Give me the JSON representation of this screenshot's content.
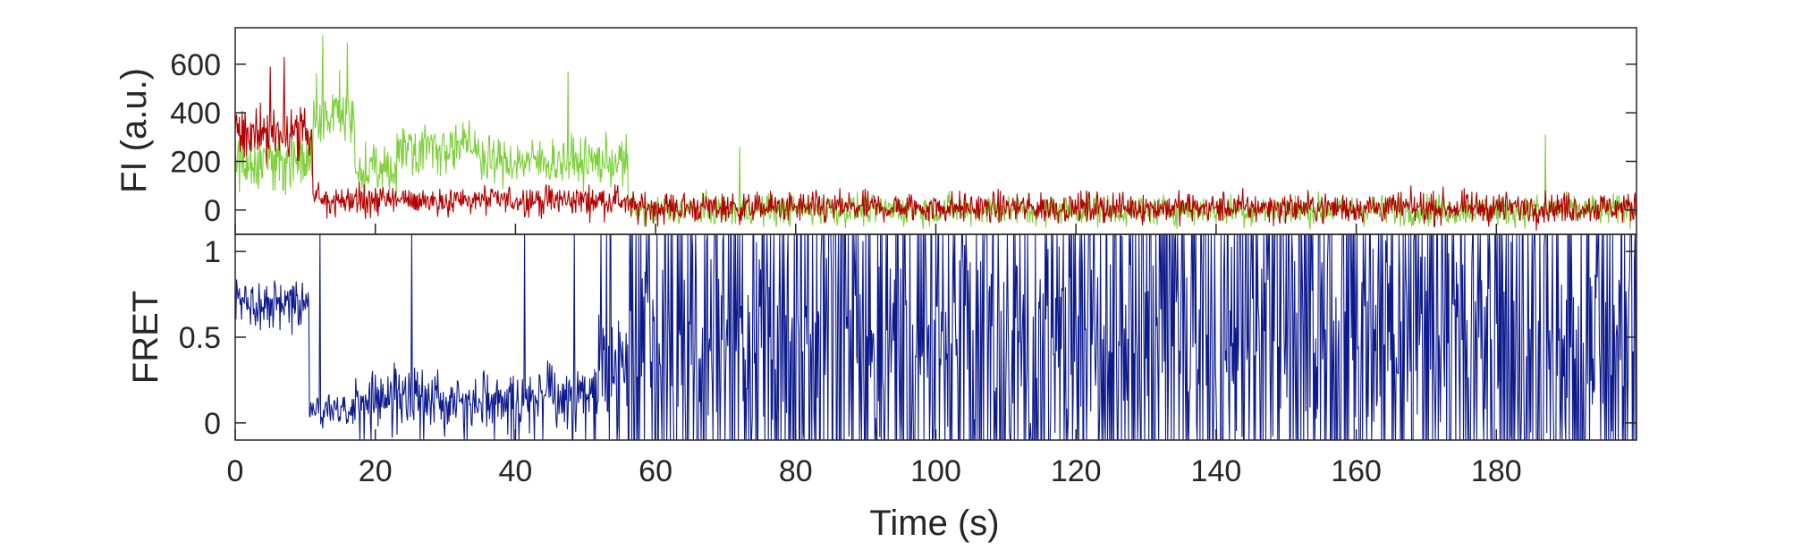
{
  "chart_data": [
    {
      "type": "line",
      "panel": "intensity",
      "ylabel": "FI (a.u.)",
      "ylim": [
        -100,
        750
      ],
      "xlim": [
        0,
        200
      ],
      "yticks": [
        "0",
        "200",
        "400",
        "600"
      ],
      "ytick_values": [
        0,
        200,
        400,
        600
      ],
      "grid": false,
      "colors": {
        "donor": "#7dd03a",
        "acceptor": "#b30000"
      },
      "series": [
        {
          "color": "#7dd03a",
          "trace_segments": [
            {
              "x_range": [
                0,
                11
              ],
              "mean": 200,
              "noise": 90
            },
            {
              "x_range": [
                11,
                17
              ],
              "mean": 380,
              "noise": 110
            },
            {
              "x_range": [
                17,
                23
              ],
              "mean": 160,
              "noise": 70
            },
            {
              "x_range": [
                23,
                35
              ],
              "mean": 260,
              "noise": 75
            },
            {
              "x_range": [
                35,
                56
              ],
              "mean": 200,
              "noise": 70
            },
            {
              "x_range": [
                56,
                200
              ],
              "mean": 0,
              "noise": 45
            }
          ],
          "peaks": [
            {
              "x": 12.5,
              "y": 720
            },
            {
              "x": 16,
              "y": 690
            },
            {
              "x": 47.5,
              "y": 570
            },
            {
              "x": 187,
              "y": 310
            },
            {
              "x": 72,
              "y": 260
            }
          ]
        },
        {
          "color": "#b30000",
          "trace_segments": [
            {
              "x_range": [
                0,
                11
              ],
              "mean": 310,
              "noise": 95
            },
            {
              "x_range": [
                11,
                56
              ],
              "mean": 40,
              "noise": 45
            },
            {
              "x_range": [
                56,
                200
              ],
              "mean": 10,
              "noise": 45
            }
          ],
          "peaks": [
            {
              "x": 5,
              "y": 590
            },
            {
              "x": 7,
              "y": 630
            }
          ]
        }
      ]
    },
    {
      "type": "line",
      "panel": "fret",
      "xlabel": "Time (s)",
      "ylabel": "FRET",
      "ylim": [
        -0.1,
        1.1
      ],
      "xlim": [
        0,
        200
      ],
      "xticks": [
        "0",
        "20",
        "40",
        "60",
        "80",
        "100",
        "120",
        "140",
        "160",
        "180"
      ],
      "xtick_values": [
        0,
        20,
        40,
        60,
        80,
        100,
        120,
        140,
        160,
        180
      ],
      "yticks": [
        "0",
        "0.5",
        "1"
      ],
      "ytick_values": [
        0,
        0.5,
        1
      ],
      "grid": false,
      "colors": {
        "fret": "#0d1a8c"
      },
      "series": [
        {
          "color": "#0d1a8c",
          "trace_segments": [
            {
              "x_range": [
                0,
                10.5
              ],
              "mean": 0.7,
              "noise": 0.1,
              "jump_prob": 0
            },
            {
              "x_range": [
                10.5,
                17
              ],
              "mean": 0.08,
              "noise": 0.07,
              "jump_prob": 0.02
            },
            {
              "x_range": [
                17,
                51
              ],
              "mean": 0.15,
              "noise": 0.12,
              "jump_prob": 0.05
            },
            {
              "x_range": [
                51,
                56
              ],
              "mean": 0.3,
              "noise": 0.2,
              "jump_prob": 0.25
            },
            {
              "x_range": [
                56,
                200
              ],
              "mean": 0.5,
              "noise": 0.45,
              "jump_prob": 0.5
            }
          ]
        }
      ]
    }
  ]
}
